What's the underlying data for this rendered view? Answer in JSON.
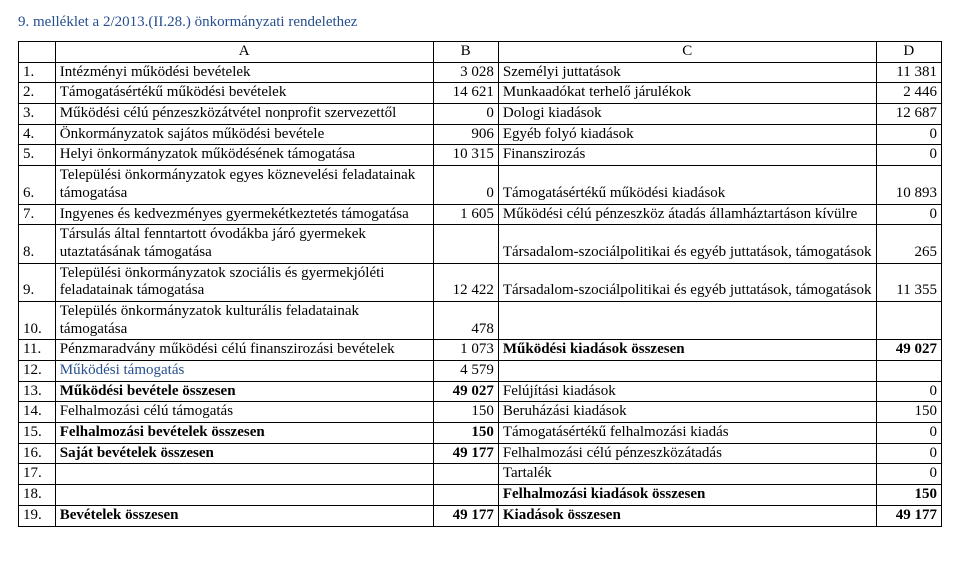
{
  "title": "9. melléklet a 2/2013.(II.28.) önkormányzati rendelethez",
  "headers": {
    "a": "A",
    "b": "B",
    "c": "C",
    "d": "D"
  },
  "rows": [
    {
      "n": "1.",
      "a": "Intézményi működési bevételek",
      "b": "3 028",
      "c": "Személyi juttatások",
      "d": "11 381"
    },
    {
      "n": "2.",
      "a": "Támogatásértékű működési bevételek",
      "b": "14 621",
      "c": "Munkaadókat terhelő járulékok",
      "d": "2 446"
    },
    {
      "n": "3.",
      "a": "Működési célú pénzeszközátvétel nonprofit szervezettől",
      "b": "0",
      "c": "Dologi kiadások",
      "d": "12 687"
    },
    {
      "n": "4.",
      "a": "Önkormányzatok sajátos működési bevétele",
      "b": "906",
      "c": "Egyéb folyó kiadások",
      "d": "0"
    },
    {
      "n": "5.",
      "a": "Helyi önkormányzatok működésének támogatása",
      "b": "10 315",
      "c": "Finanszirozás",
      "d": "0"
    },
    {
      "n": "6.",
      "a": "Települési önkormányzatok egyes köznevelési feladatainak támogatása",
      "b": "0",
      "c": "Támogatásértékű működési kiadások",
      "d": "10 893"
    },
    {
      "n": "7.",
      "a": "Ingyenes és kedvezményes gyermekétkeztetés támogatása",
      "b": "1 605",
      "c": "Működési célú pénzeszköz átadás államháztartáson kívülre",
      "d": "0"
    },
    {
      "n": "8.",
      "a": "Társulás által fenntartott óvodákba járó gyermekek utaztatásának támogatása",
      "b": "",
      "c": "Társadalom-szociálpolitikai és egyéb juttatások, támogatások",
      "d": "265"
    },
    {
      "n": "9.",
      "a": "Települési önkormányzatok szociális és gyermekjóléti feladatainak támogatása",
      "b": "12 422",
      "c": "Társadalom-szociálpolitikai és egyéb juttatások, támogatások",
      "d": "11 355"
    },
    {
      "n": "10.",
      "a": "Település önkormányzatok kulturális feladatainak támogatása",
      "b": "478",
      "c": "",
      "d": ""
    },
    {
      "n": "11.",
      "a": "Pénzmaradvány működési célú finanszirozási bevételek",
      "b": "1 073",
      "c": "Működési kiadások összesen",
      "cBold": true,
      "d": "49 027",
      "dBold": true
    },
    {
      "n": "12.",
      "a": "Működési támogatás",
      "aBlue": true,
      "b": "4 579",
      "c": "",
      "d": ""
    },
    {
      "n": "13.",
      "a": "Működési bevétele összesen",
      "aBold": true,
      "b": "49 027",
      "bBold": true,
      "c": "Felújítási kiadások",
      "d": "0"
    },
    {
      "n": "14.",
      "a": "Felhalmozási célú támogatás",
      "b": "150",
      "c": "Beruházási kiadások",
      "d": "150"
    },
    {
      "n": "15.",
      "a": "Felhalmozási bevételek összesen",
      "aBold": true,
      "b": "150",
      "bBold": true,
      "c": "Támogatásértékű felhalmozási kiadás",
      "d": "0"
    },
    {
      "n": "16.",
      "a": "Saját bevételek összesen",
      "aBold": true,
      "b": "49 177",
      "bBold": true,
      "c": "Felhalmozási célú pénzeszközátadás",
      "d": "0"
    },
    {
      "n": "17.",
      "a": "",
      "b": "",
      "c": "Tartalék",
      "d": "0"
    },
    {
      "n": "18.",
      "a": "",
      "b": "",
      "c": "Felhalmozási kiadások összesen",
      "cBold": true,
      "d": "150",
      "dBold": true
    },
    {
      "n": "19.",
      "a": "Bevételek összesen",
      "aBold": true,
      "b": "49 177",
      "bBold": true,
      "c": "Kiadások összesen",
      "cBold": true,
      "d": "49 177",
      "dBold": true
    }
  ]
}
